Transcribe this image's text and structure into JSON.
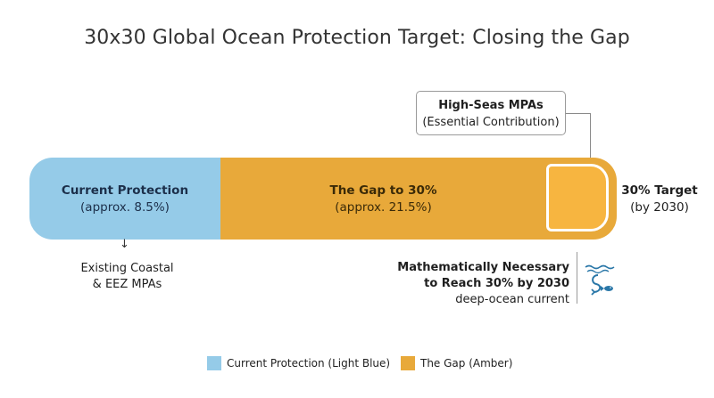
{
  "title": "30x30 Global Ocean Protection Target: Closing the Gap",
  "colors": {
    "current": "#95cbe8",
    "gap": "#e8a93a",
    "target": "#f7b540"
  },
  "bar": {
    "current": {
      "label": "Current Protection",
      "value_text": "(approx. 8.5%)",
      "percent": 8.5
    },
    "gap": {
      "label": "The Gap to 30%",
      "value_text": "(approx. 21.5%)",
      "percent": 21.5
    },
    "target": {
      "label": "30% Target",
      "subtitle": "(by 2030)",
      "percent": 30
    }
  },
  "high_seas": {
    "title": "High-Seas MPAs",
    "subtitle": "(Essential Contribution)"
  },
  "existing": {
    "arrow": "↓",
    "line1": "Existing Coastal",
    "line2": "& EEZ MPAs"
  },
  "necessary": {
    "line1": "Mathematically Necessary",
    "line2": "to Reach 30% by 2030",
    "line3": "deep-ocean current",
    "icon": "deep-ocean-current-icon"
  },
  "legend": [
    {
      "label": "Current Protection (Light Blue)",
      "color": "#95cbe8"
    },
    {
      "label": "The Gap (Amber)",
      "color": "#e8a93a"
    }
  ]
}
